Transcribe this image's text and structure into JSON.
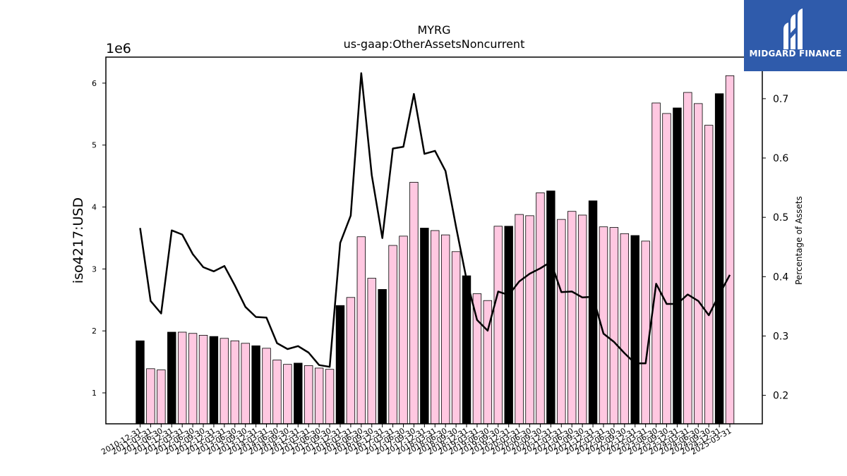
{
  "brand": {
    "name": "MIDGARD FINANCE",
    "background": "#2f5bab"
  },
  "chart_data": {
    "type": "bar",
    "title": "MYRG",
    "subtitle": "us-gaap:OtherAssetsNoncurrent",
    "ylabel": "iso4217:USD",
    "y_scale_label": "1e6",
    "y2label": "Percentage of Assets",
    "ylim": [
      0.5,
      6.42
    ],
    "y2lim": [
      0.152,
      0.77
    ],
    "yticks": [
      1,
      2,
      3,
      4,
      5,
      6
    ],
    "y2ticks": [
      0.2,
      0.3,
      0.4,
      0.5,
      0.6,
      0.7
    ],
    "colors": {
      "annual": "#000000",
      "quarterly": "#ffc8e1",
      "line": "#000000"
    },
    "categories": [
      "2010-12-31",
      "2011-03-31",
      "2011-06-30",
      "2011-12-31",
      "2012-03-31",
      "2012-06-30",
      "2012-09-30",
      "2012-12-31",
      "2013-03-31",
      "2013-06-30",
      "2013-09-30",
      "2013-12-31",
      "2014-03-31",
      "2014-06-30",
      "2014-09-30",
      "2014-12-31",
      "2015-03-31",
      "2015-06-30",
      "2015-09-30",
      "2015-12-31",
      "2016-03-31",
      "2016-06-30",
      "2016-09-30",
      "2016-12-31",
      "2017-03-31",
      "2017-06-30",
      "2017-09-30",
      "2017-12-31",
      "2018-03-31",
      "2018-06-30",
      "2018-09-30",
      "2018-12-31",
      "2019-03-31",
      "2019-06-30",
      "2019-09-30",
      "2019-12-31",
      "2020-03-31",
      "2020-06-30",
      "2020-09-30",
      "2020-12-31",
      "2021-03-31",
      "2021-06-30",
      "2021-09-30",
      "2021-12-31",
      "2022-03-31",
      "2022-06-30",
      "2022-09-30",
      "2022-12-31",
      "2023-03-31",
      "2023-06-30",
      "2023-09-30",
      "2023-12-31",
      "2024-03-31",
      "2024-06-30",
      "2024-09-30",
      "2024-12-31",
      "2025-03-31"
    ],
    "series": [
      {
        "kind": "bar",
        "values": [
          1.84,
          1.39,
          1.37,
          1.98,
          1.98,
          1.96,
          1.93,
          1.91,
          1.88,
          1.84,
          1.8,
          1.76,
          1.72,
          1.53,
          1.46,
          1.48,
          1.44,
          1.4,
          1.38,
          2.41,
          2.54,
          3.52,
          2.85,
          2.67,
          3.38,
          3.53,
          4.4,
          3.66,
          3.62,
          3.55,
          3.28,
          2.89,
          2.6,
          2.49,
          3.69,
          3.69,
          3.88,
          3.86,
          4.23,
          4.26,
          3.8,
          3.93,
          3.87,
          4.1,
          3.68,
          3.67,
          3.57,
          3.54,
          3.45,
          5.68,
          5.51,
          5.6,
          5.85,
          5.67,
          5.32,
          5.83,
          6.12
        ],
        "annual": [
          1,
          0,
          0,
          1,
          0,
          0,
          0,
          1,
          0,
          0,
          0,
          1,
          0,
          0,
          0,
          1,
          0,
          0,
          0,
          1,
          0,
          0,
          0,
          1,
          0,
          0,
          0,
          1,
          0,
          0,
          0,
          1,
          0,
          0,
          0,
          1,
          0,
          0,
          0,
          1,
          0,
          0,
          0,
          1,
          0,
          0,
          0,
          1,
          0,
          0,
          0,
          1,
          0,
          0,
          0,
          1,
          0
        ]
      },
      {
        "kind": "line",
        "axis": "right",
        "values": [
          0.482,
          0.359,
          0.338,
          0.478,
          0.471,
          0.438,
          0.416,
          0.409,
          0.418,
          0.385,
          0.349,
          0.332,
          0.331,
          0.288,
          0.278,
          0.283,
          0.272,
          0.251,
          0.248,
          0.457,
          0.503,
          0.743,
          0.571,
          0.465,
          0.616,
          0.619,
          0.708,
          0.607,
          0.612,
          0.578,
          0.484,
          0.395,
          0.327,
          0.309,
          0.375,
          0.369,
          0.392,
          0.405,
          0.414,
          0.425,
          0.374,
          0.375,
          0.365,
          0.366,
          0.304,
          0.29,
          0.271,
          0.254,
          0.254,
          0.388,
          0.354,
          0.354,
          0.37,
          0.359,
          0.335,
          0.37,
          0.403
        ]
      }
    ]
  }
}
